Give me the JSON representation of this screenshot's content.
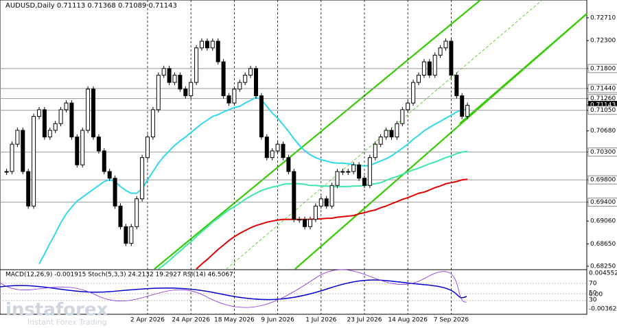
{
  "chart_data": {
    "type": "candlestick",
    "title": "AUDUSD,Daily  0.71113 0.71368 0.71089 0.71143",
    "indicator_text": "MACD(12,26,9) -0.001915  Stoch(5,3,3) 24.2132 19.2927  RSI(14) 46.5067",
    "indicator_ticks": [
      "0.004552",
      "70",
      "50",
      "30",
      "0.00",
      "-0.003621"
    ],
    "watermark": "instaforex",
    "watermark_sub": "Instant Forex Trading",
    "categories": [
      null,
      null,
      null,
      null,
      null,
      null,
      null,
      null,
      null,
      null,
      null,
      null,
      null,
      null,
      null,
      null,
      null,
      null,
      null,
      null,
      null,
      null,
      null,
      null,
      null,
      null,
      "2 Apr 2026",
      null,
      null,
      null,
      null,
      null,
      null,
      null,
      "24 Apr 2026",
      null,
      null,
      null,
      null,
      null,
      null,
      null,
      "18 May 2026",
      null,
      null,
      null,
      null,
      null,
      null,
      null,
      "9 Jun 2026",
      null,
      null,
      null,
      null,
      null,
      null,
      null,
      "1 Jul 2026",
      null,
      null,
      null,
      null,
      null,
      null,
      null,
      "23 Jul 2026",
      null,
      null,
      null,
      null,
      null,
      null,
      null,
      "14 Aug 2026",
      null,
      null,
      null,
      null,
      null,
      null,
      null,
      "7 Sep 2026",
      null,
      null,
      null
    ],
    "values": [
      0.6995,
      0.7044,
      0.7069,
      0.6995,
      0.6933,
      0.7094,
      0.7106,
      0.7057,
      0.7069,
      0.7081,
      0.7106,
      0.7118,
      0.7057,
      0.7007,
      0.7069,
      0.7143,
      0.7057,
      0.7032,
      0.6995,
      0.6983,
      0.6933,
      0.6896,
      0.6866,
      0.6896,
      0.6946,
      0.702,
      0.7057,
      0.7106,
      0.7168,
      0.718,
      0.7155,
      0.7168,
      0.7143,
      0.7131,
      0.7155,
      0.7217,
      0.7229,
      0.7217,
      0.7229,
      0.7192,
      0.7131,
      0.7118,
      0.7143,
      0.7155,
      0.7168,
      0.718,
      0.7131,
      0.7057,
      0.702,
      0.7032,
      0.7044,
      0.702,
      0.6995,
      0.6909,
      0.6909,
      0.6896,
      0.6909,
      0.6933,
      0.6946,
      0.6933,
      0.697,
      0.6995,
      0.6995,
      0.6995,
      0.7007,
      0.6983,
      0.697,
      0.702,
      0.7044,
      0.7057,
      0.7069,
      0.7057,
      0.7081,
      0.7106,
      0.7118,
      0.7155,
      0.7168,
      0.7192,
      0.7168,
      0.7204,
      0.7217,
      0.7229,
      0.7168,
      0.7131,
      0.7094,
      0.7114
    ],
    "color": "#000000",
    "series": [
      {
        "color": "#2fd8ea",
        "values": [
          null,
          null,
          null,
          null,
          null,
          null,
          0.6829,
          0.6847,
          0.6866,
          0.6884,
          0.6903,
          0.6919,
          0.6931,
          0.6942,
          0.6949,
          0.6956,
          0.6963,
          0.697,
          0.6977,
          0.698,
          0.6977,
          0.6968,
          0.6961,
          0.6956,
          0.6956,
          0.6964,
          0.698,
          0.6995,
          0.701,
          0.7022,
          0.7032,
          0.7042,
          0.705,
          0.7057,
          0.7065,
          0.7073,
          0.7081,
          0.7087,
          0.7094,
          0.7097,
          0.7102,
          0.7106,
          0.711,
          0.7112,
          0.7118,
          0.7123,
          0.7128,
          0.7124,
          0.7112,
          0.71,
          0.7091,
          0.7079,
          0.7067,
          0.7054,
          0.7042,
          0.7032,
          0.7025,
          0.702,
          0.7016,
          0.7014,
          0.7011,
          0.701,
          0.701,
          0.7009,
          0.7007,
          0.7006,
          0.7005,
          0.7006,
          0.701,
          0.7014,
          0.7018,
          0.7023,
          0.703,
          0.7037,
          0.7044,
          0.7053,
          0.706,
          0.7068,
          0.7074,
          0.708,
          0.7085,
          0.7091,
          0.7096,
          0.7102,
          0.7106,
          0.7106
        ]
      },
      {
        "color": "#3ae8a8",
        "values": [
          null,
          null,
          null,
          null,
          null,
          null,
          null,
          null,
          null,
          null,
          null,
          null,
          null,
          null,
          null,
          null,
          null,
          null,
          null,
          null,
          null,
          null,
          null,
          null,
          null,
          null,
          null,
          null,
          0.682,
          0.6827,
          0.6835,
          0.6844,
          0.6852,
          0.6861,
          0.6869,
          0.6878,
          0.6887,
          0.6895,
          0.6904,
          0.6911,
          0.6919,
          0.6926,
          0.6932,
          0.6938,
          0.6945,
          0.6951,
          0.6956,
          0.6961,
          0.6964,
          0.6967,
          0.6969,
          0.6972,
          0.6973,
          0.6973,
          0.6973,
          0.6972,
          0.697,
          0.697,
          0.6969,
          0.6969,
          0.6968,
          0.6968,
          0.6968,
          0.6968,
          0.6969,
          0.6969,
          0.697,
          0.6972,
          0.6973,
          0.6975,
          0.6979,
          0.6983,
          0.6986,
          0.699,
          0.6994,
          0.6998,
          0.7001,
          0.7005,
          0.7009,
          0.7012,
          0.7016,
          0.702,
          0.7023,
          0.7027,
          0.703,
          0.7031
        ]
      },
      {
        "color": "#e00000",
        "values": [
          null,
          null,
          null,
          null,
          null,
          null,
          null,
          null,
          null,
          null,
          null,
          null,
          null,
          null,
          null,
          null,
          null,
          null,
          null,
          null,
          null,
          null,
          null,
          null,
          null,
          null,
          null,
          null,
          null,
          null,
          null,
          null,
          null,
          null,
          null,
          0.682,
          0.6829,
          0.6837,
          0.6846,
          0.6855,
          0.6863,
          0.6871,
          0.6878,
          0.6884,
          0.6889,
          0.6894,
          0.6898,
          0.6901,
          0.6904,
          0.6906,
          0.6908,
          0.6909,
          0.6909,
          0.6909,
          0.6909,
          0.6909,
          0.6909,
          0.691,
          0.691,
          0.6911,
          0.6911,
          0.6913,
          0.6914,
          0.6915,
          0.6916,
          0.6919,
          0.6921,
          0.6924,
          0.6926,
          0.693,
          0.6933,
          0.6937,
          0.6941,
          0.6945,
          0.6948,
          0.6952,
          0.6956,
          0.6958,
          0.6962,
          0.6966,
          0.6969,
          0.6973,
          0.6975,
          0.6977,
          0.698,
          0.6981
        ]
      }
    ],
    "ylim": [
      0.682,
      0.7303
    ],
    "yticks": [
      {
        "value": 0.7271,
        "label": "0.72710"
      },
      {
        "value": 0.723,
        "label": "0.72300"
      },
      {
        "value": 0.718,
        "label": "0.71800",
        "line": true
      },
      {
        "value": 0.7144,
        "label": "0.71440",
        "line": true
      },
      {
        "value": 0.7126,
        "label": "0.71260",
        "line": true
      },
      {
        "value": 0.71143,
        "label": "0.71143",
        "current": true
      },
      {
        "value": 0.7105,
        "label": "0.71050",
        "line": true
      },
      {
        "value": 0.7068,
        "label": "0.70680"
      },
      {
        "value": 0.703,
        "label": "0.70300",
        "line": true
      },
      {
        "value": 0.698,
        "label": "0.69800",
        "line": true
      },
      {
        "value": 0.694,
        "label": "0.69400",
        "line": true
      },
      {
        "value": 0.6906,
        "label": "0.69060"
      },
      {
        "value": 0.6865,
        "label": "0.68650"
      },
      {
        "value": 0.6825,
        "label": "0.68250"
      }
    ],
    "grid": true
  }
}
